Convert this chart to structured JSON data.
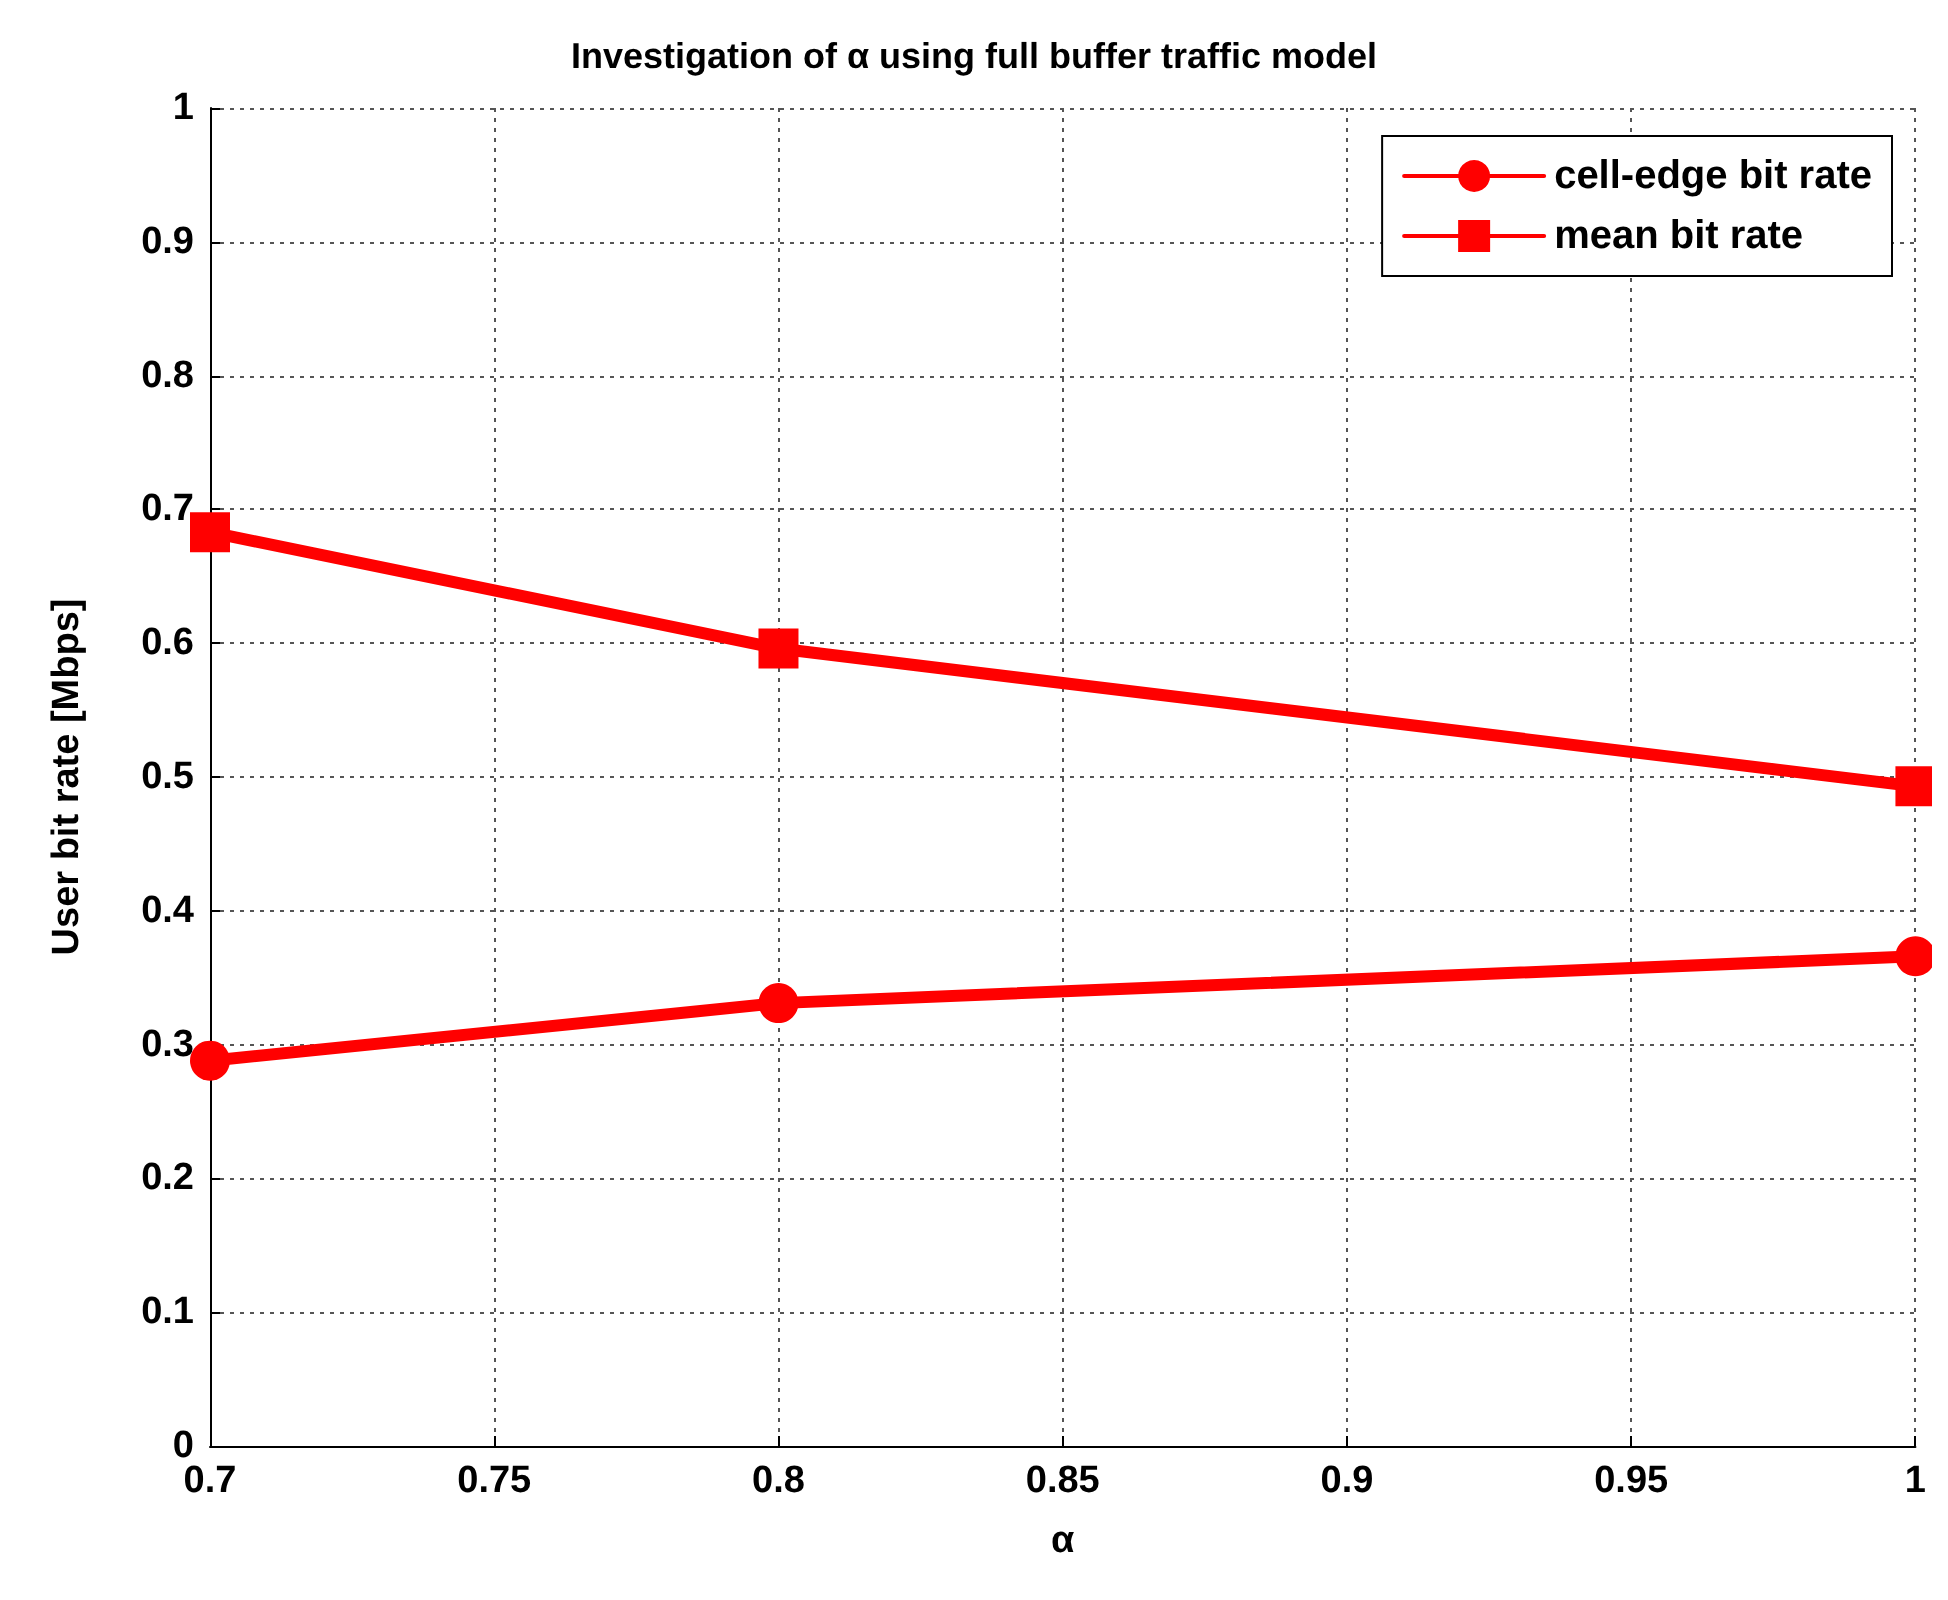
{
  "chart_data": {
    "type": "line",
    "title": "Investigation of α using full buffer traffic model",
    "xlabel": "α",
    "ylabel": "User bit rate [Mbps]",
    "x": [
      0.7,
      0.8,
      1.0
    ],
    "series": [
      {
        "name": "cell-edge bit rate",
        "color": "#ff0000",
        "marker": "circle",
        "values": [
          0.288,
          0.331,
          0.366
        ]
      },
      {
        "name": "mean bit rate",
        "color": "#ff0000",
        "marker": "square",
        "values": [
          0.683,
          0.596,
          0.493
        ]
      }
    ],
    "xlim": [
      0.7,
      1
    ],
    "xticks": [
      0.7,
      0.75,
      0.8,
      0.85,
      0.9,
      0.95,
      1
    ],
    "ylim": [
      0,
      1
    ],
    "yticks": [
      0,
      0.1,
      0.2,
      0.3,
      0.4,
      0.5,
      0.6,
      0.7,
      0.8,
      0.9,
      1
    ],
    "grid": true,
    "legend": "top right",
    "line_style": "solid"
  }
}
